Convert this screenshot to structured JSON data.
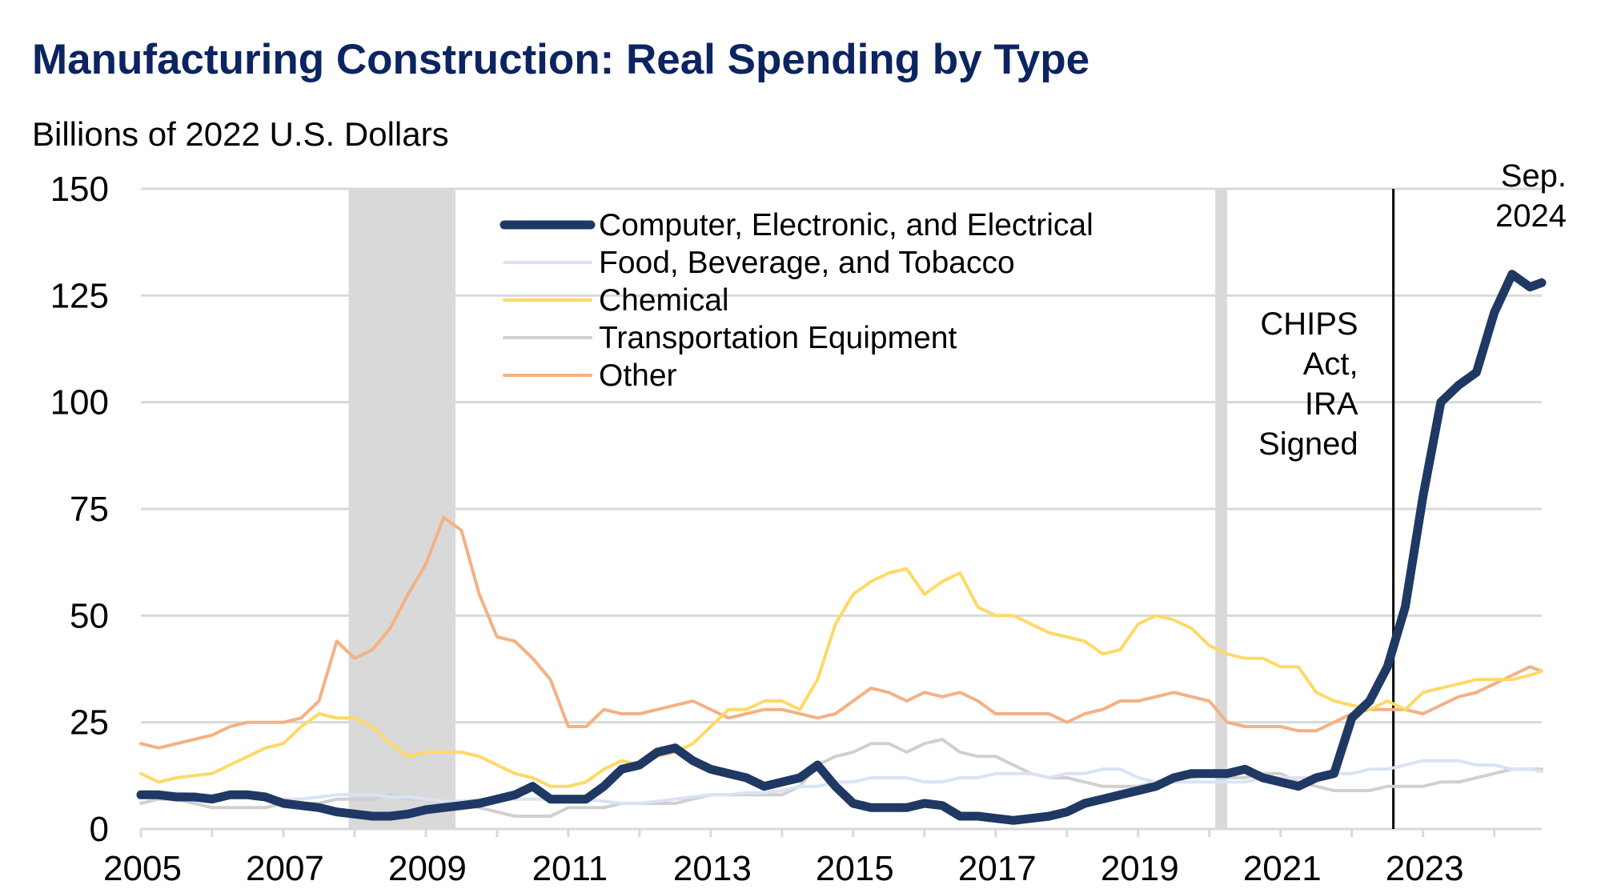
{
  "chart_data": {
    "type": "line",
    "title": "Manufacturing Construction: Real Spending by Type",
    "ylabel": "Billions of 2022 U.S. Dollars",
    "xlabel": "",
    "ylim": [
      0,
      150
    ],
    "yticks": [
      0,
      25,
      50,
      75,
      100,
      125,
      150
    ],
    "xlim": [
      "2005-01",
      "2024-09"
    ],
    "xticks": [
      "2005",
      "2007",
      "2009",
      "2011",
      "2013",
      "2015",
      "2017",
      "2019",
      "2021",
      "2023"
    ],
    "grid": "horizontal",
    "legend_placement": "top-center",
    "shaded_periods": [
      {
        "start": "2007-12",
        "end": "2009-06",
        "color": "#d9d9d9"
      },
      {
        "start": "2020-02",
        "end": "2020-04",
        "color": "#d9d9d9"
      }
    ],
    "annotations": [
      {
        "date": "2022-08",
        "text_lines": [
          "CHIPS",
          "Act,",
          "IRA",
          "Signed"
        ]
      },
      {
        "date": "2024-09",
        "text_lines": [
          "Sep.",
          "2024"
        ]
      }
    ],
    "x": [
      "2005-01",
      "2005-04",
      "2005-07",
      "2005-10",
      "2006-01",
      "2006-04",
      "2006-07",
      "2006-10",
      "2007-01",
      "2007-04",
      "2007-07",
      "2007-10",
      "2008-01",
      "2008-04",
      "2008-07",
      "2008-10",
      "2009-01",
      "2009-04",
      "2009-07",
      "2009-10",
      "2010-01",
      "2010-04",
      "2010-07",
      "2010-10",
      "2011-01",
      "2011-04",
      "2011-07",
      "2011-10",
      "2012-01",
      "2012-04",
      "2012-07",
      "2012-10",
      "2013-01",
      "2013-04",
      "2013-07",
      "2013-10",
      "2014-01",
      "2014-04",
      "2014-07",
      "2014-10",
      "2015-01",
      "2015-04",
      "2015-07",
      "2015-10",
      "2016-01",
      "2016-04",
      "2016-07",
      "2016-10",
      "2017-01",
      "2017-04",
      "2017-07",
      "2017-10",
      "2018-01",
      "2018-04",
      "2018-07",
      "2018-10",
      "2019-01",
      "2019-04",
      "2019-07",
      "2019-10",
      "2020-01",
      "2020-04",
      "2020-07",
      "2020-10",
      "2021-01",
      "2021-04",
      "2021-07",
      "2021-10",
      "2022-01",
      "2022-04",
      "2022-07",
      "2022-10",
      "2023-01",
      "2023-04",
      "2023-07",
      "2023-10",
      "2024-01",
      "2024-04",
      "2024-07",
      "2024-09"
    ],
    "series": [
      {
        "name": "Computer, Electronic, and Electrical",
        "color": "#1f3864",
        "values": [
          8,
          8,
          7.5,
          7.5,
          7,
          8,
          8,
          7.5,
          6,
          5.5,
          5,
          4,
          3.5,
          3,
          3,
          3.5,
          4.5,
          5,
          5.5,
          6,
          7,
          8,
          10,
          7,
          7,
          7,
          10,
          14,
          15,
          18,
          19,
          16,
          14,
          13,
          12,
          10,
          11,
          12,
          15,
          10,
          6,
          5,
          5,
          5,
          6,
          5.5,
          3,
          3,
          2.5,
          2,
          2.5,
          3,
          4,
          6,
          7,
          8,
          9,
          10,
          12,
          13,
          13,
          13,
          14,
          12,
          11,
          10,
          12,
          13,
          26,
          30,
          38,
          52,
          78,
          100,
          104,
          107,
          121,
          130,
          127,
          128
        ]
      },
      {
        "name": "Food, Beverage, and Tobacco",
        "color": "#dae3f3",
        "values": [
          8,
          8,
          8.5,
          8,
          8,
          8,
          7.5,
          7.5,
          7,
          7,
          7.5,
          8,
          8,
          8,
          7.5,
          7.5,
          7,
          6.5,
          6.5,
          7,
          7,
          7,
          7,
          7,
          7,
          7,
          6.5,
          6,
          6,
          6.5,
          7,
          7.5,
          8,
          8,
          8.5,
          8.5,
          9,
          10,
          10,
          11,
          11,
          12,
          12,
          12,
          11,
          11,
          12,
          12,
          13,
          13,
          13,
          12,
          13,
          13,
          14,
          14,
          12,
          11,
          11,
          11,
          11,
          11,
          11,
          12,
          12,
          12,
          12,
          13,
          13,
          14,
          14,
          15,
          16,
          16,
          16,
          15,
          15,
          14,
          14,
          13.5
        ]
      },
      {
        "name": "Chemical",
        "color": "#ffd966",
        "values": [
          13,
          11,
          12,
          12.5,
          13,
          15,
          17,
          19,
          20,
          24,
          27,
          26,
          26,
          24,
          20,
          17,
          18,
          18,
          18,
          17,
          15,
          13,
          12,
          10,
          10,
          11,
          14,
          16,
          15,
          17,
          18,
          20,
          24,
          28,
          28,
          30,
          30,
          28,
          35,
          48,
          55,
          58,
          60,
          61,
          55,
          58,
          60,
          52,
          50,
          50,
          48,
          46,
          45,
          44,
          41,
          42,
          48,
          50,
          49,
          47,
          43,
          41,
          40,
          40,
          38,
          38,
          32,
          30,
          29,
          28,
          30,
          28,
          32,
          33,
          34,
          35,
          35,
          35,
          36,
          37
        ]
      },
      {
        "name": "Transportation Equipment",
        "color": "#d0d0d0",
        "values": [
          6,
          7,
          7,
          6,
          5,
          5,
          5,
          5,
          6,
          6,
          6,
          7,
          7,
          7,
          8,
          7,
          7,
          6,
          6,
          5,
          4,
          3,
          3,
          3,
          5,
          5,
          5,
          6,
          6,
          6,
          6,
          7,
          8,
          8,
          8,
          8,
          8,
          10,
          15,
          17,
          18,
          20,
          20,
          18,
          20,
          21,
          18,
          17,
          17,
          15,
          13,
          12,
          12,
          11,
          10,
          10,
          10,
          11,
          12,
          12,
          13,
          12,
          12,
          13,
          13,
          11,
          10,
          9,
          9,
          9,
          10,
          10,
          10,
          11,
          11,
          12,
          13,
          14,
          14,
          14
        ]
      },
      {
        "name": "Other",
        "color": "#f4b183",
        "values": [
          20,
          19,
          20,
          21,
          22,
          24,
          25,
          25,
          25,
          26,
          30,
          44,
          40,
          42,
          47,
          55,
          62,
          73,
          70,
          55,
          45,
          44,
          40,
          35,
          24,
          24,
          28,
          27,
          27,
          28,
          29,
          30,
          28,
          26,
          27,
          28,
          28,
          27,
          26,
          27,
          30,
          33,
          32,
          30,
          32,
          31,
          32,
          30,
          27,
          27,
          27,
          27,
          25,
          27,
          28,
          30,
          30,
          31,
          32,
          31,
          30,
          25,
          24,
          24,
          24,
          23,
          23,
          25,
          27,
          28,
          28,
          28,
          27,
          29,
          31,
          32,
          34,
          36,
          38,
          37
        ]
      }
    ]
  }
}
